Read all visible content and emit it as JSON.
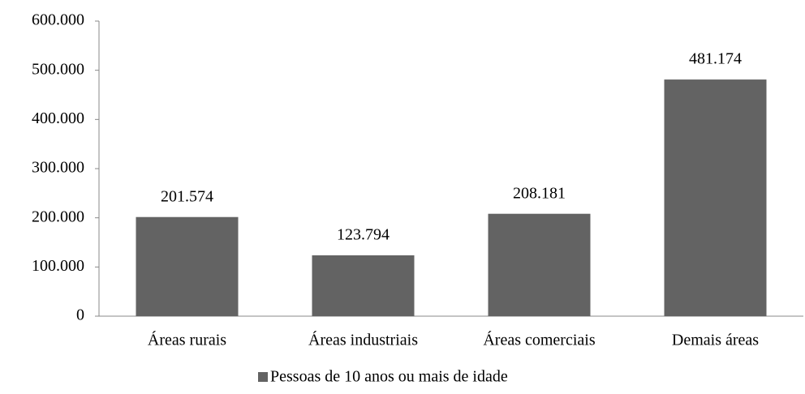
{
  "chart_data": {
    "type": "bar",
    "categories": [
      "Áreas rurais",
      "Áreas industriais",
      "Áreas comerciais",
      "Demais áreas"
    ],
    "series": [
      {
        "name": "Pessoas de 10 anos ou mais de idade",
        "color": "#636363",
        "values": [
          201574,
          123794,
          208181,
          481174
        ],
        "value_labels": [
          "201.574",
          "123.794",
          "208.181",
          "481.174"
        ]
      }
    ],
    "ylim": [
      0,
      600000
    ],
    "yticks": [
      0,
      {
        "value": 100000,
        "label": "100.000"
      },
      {
        "value": 200000,
        "label": "200.000"
      },
      {
        "value": 300000,
        "label": "300.000"
      },
      {
        "value": 400000,
        "label": "400.000"
      },
      {
        "value": 500000,
        "label": "500.000"
      },
      {
        "value": 600000,
        "label": "600.000"
      }
    ],
    "grid": false,
    "legend": "bottom"
  }
}
